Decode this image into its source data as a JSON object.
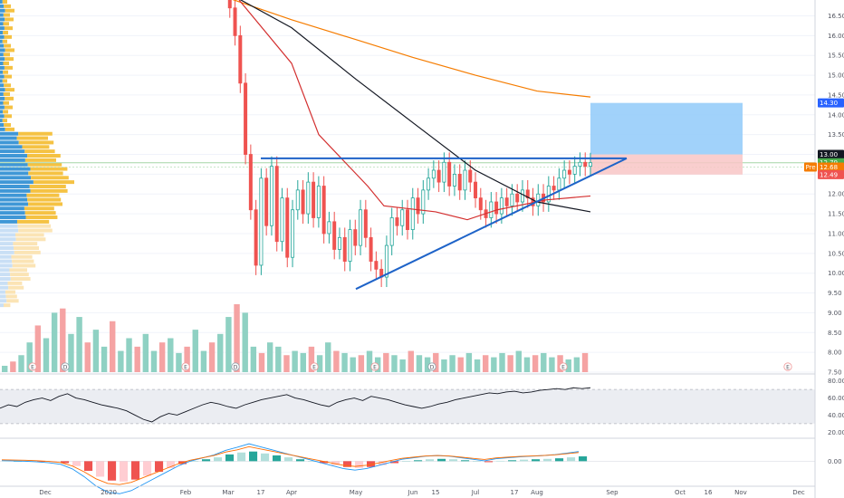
{
  "chart_data": [
    {
      "type": "candlestick",
      "title": "",
      "x_ticks": [
        "Dec",
        "2020",
        "Feb",
        "Mar",
        "17",
        "Apr",
        "May",
        "Jun",
        "15",
        "Jul",
        "17",
        "Aug",
        "Sep",
        "Oct",
        "16",
        "Nov",
        "Dec"
      ],
      "y_ticks": [
        "16.50",
        "16.00",
        "15.50",
        "15.00",
        "14.50",
        "14.00",
        "13.50",
        "13.00",
        "12.50",
        "12.00",
        "11.50",
        "11.00",
        "10.50",
        "10.00",
        "9.50",
        "9.00",
        "8.50",
        "8.00",
        "7.50"
      ],
      "ylim": [
        7.5,
        16.9
      ],
      "price_labels": [
        {
          "text": "14.30",
          "value": 14.3,
          "color": "#2962ff"
        },
        {
          "text": "13.00",
          "value": 13.0,
          "color": "#131722"
        },
        {
          "text": "12.79",
          "value": 12.79,
          "color": "#4caf50"
        },
        {
          "text": "12.68",
          "value": 12.68,
          "color": "#f57c00"
        },
        {
          "text": "12.49",
          "value": 12.49,
          "color": "#ef5350"
        }
      ],
      "pre_tag": "Pre",
      "moving_averages": [
        {
          "color": "#f57c00",
          "points": [
            [
              "Feb",
              17.2
            ],
            [
              "Mar",
              16.95
            ],
            [
              "Apr",
              16.4
            ],
            [
              "May",
              15.9
            ],
            [
              "Jun",
              15.45
            ],
            [
              "Jul",
              15.0
            ],
            [
              "Aug",
              14.6
            ],
            [
              "Aug 24",
              14.45
            ]
          ]
        },
        {
          "color": "#131722",
          "points": [
            [
              "Mar 10",
              17.0
            ],
            [
              "Apr",
              16.2
            ],
            [
              "May",
              14.9
            ],
            [
              "Jun",
              13.8
            ],
            [
              "Jul",
              12.6
            ],
            [
              "Aug",
              11.8
            ],
            [
              "Aug 24",
              11.55
            ]
          ]
        },
        {
          "color": "#d32f2f",
          "points": [
            [
              "Mar 12",
              16.9
            ],
            [
              "Apr 1",
              15.3
            ],
            [
              "Apr 20",
              13.5
            ],
            [
              "May 10",
              12.2
            ],
            [
              "May 25",
              11.7
            ],
            [
              "Jun 15",
              11.55
            ],
            [
              "Jul 5",
              11.35
            ],
            [
              "Jul 25",
              11.6
            ],
            [
              "Aug 10",
              11.85
            ],
            [
              "Aug 24",
              11.95
            ]
          ]
        }
      ],
      "trendlines": [
        {
          "color": "#1e63c8",
          "from": [
            "Mar 17",
            12.9
          ],
          "to": [
            "Aug 27",
            12.9
          ]
        },
        {
          "color": "#1e63c8",
          "from": [
            "May 1",
            9.6
          ],
          "to": [
            "Aug 27",
            12.9
          ]
        }
      ],
      "zones": [
        {
          "color": "#90caf9",
          "from": [
            "Aug 24",
            13.0
          ],
          "to": [
            "Sep 16",
            14.3
          ]
        },
        {
          "color": "#f8c5c5",
          "from": [
            "Aug 24",
            12.49
          ],
          "to": [
            "Sep 16",
            13.0
          ]
        }
      ],
      "close_approx": [
        17.1,
        16.7,
        16.0,
        14.8,
        13.0,
        11.6,
        10.2,
        12.4,
        11.2,
        12.7,
        10.8,
        11.9,
        10.4,
        11.6,
        12.1,
        11.5,
        12.3,
        11.4,
        12.2,
        11.0,
        11.3,
        10.6,
        10.9,
        10.3,
        11.1,
        10.7,
        11.6,
        10.9,
        10.3,
        10.1,
        9.9,
        10.7,
        11.4,
        11.2,
        11.6,
        11.1,
        11.9,
        11.5,
        12.1,
        12.4,
        12.6,
        12.3,
        12.8,
        12.2,
        12.5,
        12.1,
        12.6,
        12.3,
        11.9,
        11.6,
        11.4,
        11.8,
        11.5,
        11.9,
        11.7,
        12.0,
        11.8,
        12.1,
        11.9,
        11.7,
        12.0,
        11.8,
        12.2,
        12.1,
        12.4,
        12.6,
        12.5,
        12.7,
        12.8,
        12.7,
        12.79
      ],
      "volume_approx": [
        3,
        5,
        8,
        14,
        22,
        16,
        28,
        30,
        18,
        26,
        14,
        20,
        12,
        24,
        10,
        16,
        12,
        18,
        10,
        14,
        16,
        9,
        12,
        20,
        10,
        14,
        18,
        26,
        32,
        28,
        12,
        9,
        14,
        12,
        8,
        10,
        9,
        12,
        8,
        14,
        10,
        9,
        7,
        8,
        10,
        7,
        9,
        8,
        6,
        10,
        8,
        7,
        9,
        6,
        8,
        7,
        9,
        6,
        8,
        7,
        9,
        8,
        10,
        7,
        8,
        9,
        7,
        8,
        6,
        7,
        9
      ],
      "event_markers": [
        "E",
        "D",
        "E",
        "D",
        "E",
        "E",
        "D",
        "E",
        "E"
      ]
    },
    {
      "type": "line",
      "title": "",
      "y_ticks": [
        "80.00",
        "60.00",
        "40.00",
        "20.00"
      ],
      "ylim": [
        15,
        85
      ],
      "band": [
        30,
        70
      ],
      "values": [
        48,
        52,
        50,
        55,
        58,
        60,
        57,
        62,
        65,
        60,
        58,
        55,
        52,
        50,
        48,
        45,
        40,
        35,
        32,
        38,
        42,
        40,
        44,
        48,
        52,
        55,
        53,
        50,
        48,
        52,
        55,
        58,
        60,
        62,
        64,
        60,
        58,
        55,
        52,
        50,
        55,
        58,
        60,
        57,
        62,
        60,
        58,
        55,
        52,
        50,
        48,
        50,
        53,
        55,
        58,
        60,
        62,
        64,
        66,
        65,
        67,
        68,
        66,
        67,
        69,
        70,
        71,
        70,
        72,
        71,
        72
      ]
    },
    {
      "type": "histogram",
      "title": "",
      "y_ticks": [
        "0.00"
      ],
      "ylim": [
        -1.2,
        1.0
      ],
      "values": [
        0.02,
        0.01,
        0.0,
        -0.02,
        -0.05,
        -0.1,
        -0.25,
        -0.5,
        -0.8,
        -1.0,
        -1.05,
        -0.95,
        -0.75,
        -0.55,
        -0.35,
        -0.15,
        0.0,
        0.1,
        0.2,
        0.35,
        0.45,
        0.5,
        0.4,
        0.3,
        0.2,
        0.1,
        0.0,
        -0.1,
        -0.2,
        -0.3,
        -0.35,
        -0.3,
        -0.2,
        -0.1,
        0.0,
        0.05,
        0.1,
        0.12,
        0.1,
        0.05,
        0.0,
        -0.05,
        0.02,
        0.05,
        0.08,
        0.1,
        0.12,
        0.15,
        0.2,
        0.25
      ]
    }
  ]
}
